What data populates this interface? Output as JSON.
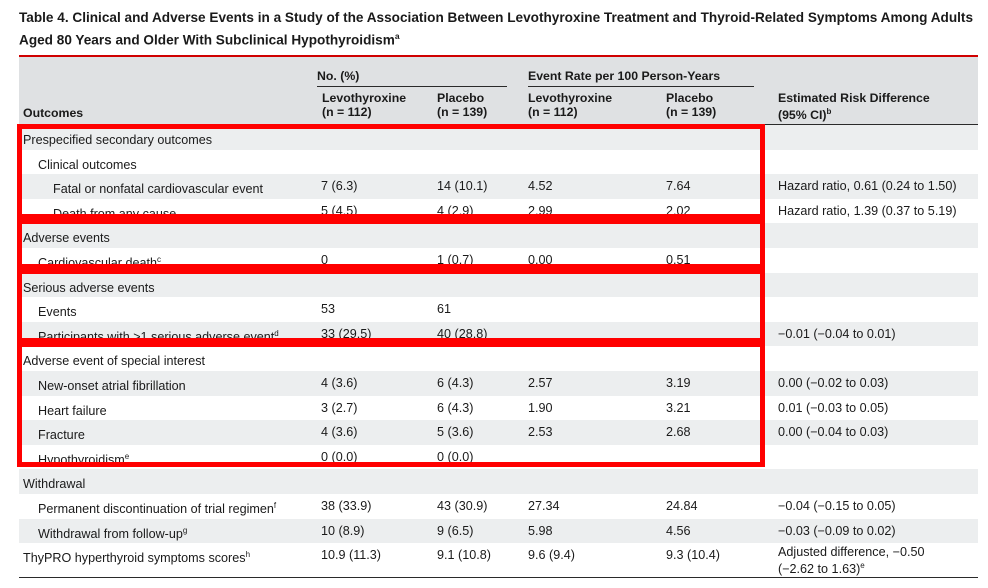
{
  "title": "Table 4. Clinical and Adverse Events in a Study of the Association Between Levothyroxine Treatment and Thyroid-Related Symptoms Among Adults Aged 80 Years and Older With Subclinical Hypothyroidism",
  "title_sup": "a",
  "headers": {
    "outcomes": "Outcomes",
    "no_pct": "No. (%)",
    "event_rate": "Event Rate per 100 Person-Years",
    "levo": "Levothyroxine",
    "levo_n": "(n = 112)",
    "placebo": "Placebo",
    "placebo_n": "(n = 139)",
    "risk_diff": "Estimated Risk Difference",
    "risk_ci": "(95% CI)",
    "risk_sup": "b"
  },
  "rows": [
    {
      "label": "Prespecified secondary outcomes",
      "sup": "",
      "indent": 0,
      "c1": "",
      "c2": "",
      "c3": "",
      "c4": "",
      "c5": "",
      "c5b": ""
    },
    {
      "label": "Clinical outcomes",
      "sup": "",
      "indent": 1,
      "c1": "",
      "c2": "",
      "c3": "",
      "c4": "",
      "c5": "",
      "c5b": ""
    },
    {
      "label": "Fatal or nonfatal cardiovascular event",
      "sup": "",
      "indent": 2,
      "c1": "7 (6.3)",
      "c2": "14 (10.1)",
      "c3": "4.52",
      "c4": "7.64",
      "c5": "Hazard ratio, 0.61 (0.24 to 1.50)",
      "c5b": ""
    },
    {
      "label": "Death from any cause",
      "sup": "",
      "indent": 2,
      "c1": "5 (4.5)",
      "c2": "4 (2.9)",
      "c3": "2.99",
      "c4": "2.02",
      "c5": "Hazard ratio, 1.39 (0.37 to 5.19)",
      "c5b": ""
    },
    {
      "label": "Adverse events",
      "sup": "",
      "indent": 0,
      "c1": "",
      "c2": "",
      "c3": "",
      "c4": "",
      "c5": "",
      "c5b": ""
    },
    {
      "label": "Cardiovascular death",
      "sup": "c",
      "indent": 1,
      "c1": "0",
      "c2": "1 (0.7)",
      "c3": "0.00",
      "c4": "0.51",
      "c5": "",
      "c5b": ""
    },
    {
      "label": "Serious adverse events",
      "sup": "",
      "indent": 0,
      "c1": "",
      "c2": "",
      "c3": "",
      "c4": "",
      "c5": "",
      "c5b": ""
    },
    {
      "label": "Events",
      "sup": "",
      "indent": 1,
      "c1": "53",
      "c2": "61",
      "c3": "",
      "c4": "",
      "c5": "",
      "c5b": ""
    },
    {
      "label": "Participants with >1 serious adverse event",
      "sup": "d",
      "indent": 1,
      "c1": "33 (29.5)",
      "c2": "40 (28.8)",
      "c3": "",
      "c4": "",
      "c5": "−0.01 (−0.04 to 0.01)",
      "c5b": ""
    },
    {
      "label": "Adverse event of special interest",
      "sup": "",
      "indent": 0,
      "c1": "",
      "c2": "",
      "c3": "",
      "c4": "",
      "c5": "",
      "c5b": ""
    },
    {
      "label": "New-onset atrial fibrillation",
      "sup": "",
      "indent": 1,
      "c1": "4 (3.6)",
      "c2": "6 (4.3)",
      "c3": "2.57",
      "c4": "3.19",
      "c5": "0.00 (−0.02 to 0.03)",
      "c5b": ""
    },
    {
      "label": "Heart failure",
      "sup": "",
      "indent": 1,
      "c1": "3 (2.7)",
      "c2": "6 (4.3)",
      "c3": "1.90",
      "c4": "3.21",
      "c5": "0.01 (−0.03 to 0.05)",
      "c5b": ""
    },
    {
      "label": "Fracture",
      "sup": "",
      "indent": 1,
      "c1": "4 (3.6)",
      "c2": "5 (3.6)",
      "c3": "2.53",
      "c4": "2.68",
      "c5": "0.00 (−0.04 to 0.03)",
      "c5b": ""
    },
    {
      "label": "Hypothyroidism",
      "sup": "e",
      "indent": 1,
      "c1": "0 (0.0)",
      "c2": "0 (0.0)",
      "c3": "",
      "c4": "",
      "c5": "",
      "c5b": ""
    },
    {
      "label": "Withdrawal",
      "sup": "",
      "indent": 0,
      "c1": "",
      "c2": "",
      "c3": "",
      "c4": "",
      "c5": "",
      "c5b": ""
    },
    {
      "label": "Permanent discontinuation of trial regimen",
      "sup": "f",
      "indent": 1,
      "c1": "38 (33.9)",
      "c2": "43 (30.9)",
      "c3": "27.34",
      "c4": "24.84",
      "c5": "−0.04 (−0.15 to 0.05)",
      "c5b": ""
    },
    {
      "label": "Withdrawal from follow-up",
      "sup": "g",
      "indent": 1,
      "c1": "10 (8.9)",
      "c2": "9 (6.5)",
      "c3": "5.98",
      "c4": "4.56",
      "c5": "−0.03 (−0.09 to 0.02)",
      "c5b": ""
    },
    {
      "label": "ThyPRO hyperthyroid symptoms scores",
      "sup": "h",
      "indent": 0,
      "c1": "10.9 (11.3)",
      "c2": "9.1 (10.8)",
      "c3": "9.6 (9.4)",
      "c4": "9.3 (10.4)",
      "c5": "Adjusted difference, −0.50",
      "c5b": "(−2.62 to 1.63)",
      "c5b_sup": "e"
    }
  ],
  "colors": {
    "rule": "#d00000",
    "highlight": "#ff0000",
    "header_bg": "#dfe1e3",
    "row_shade": "#eceeef"
  }
}
